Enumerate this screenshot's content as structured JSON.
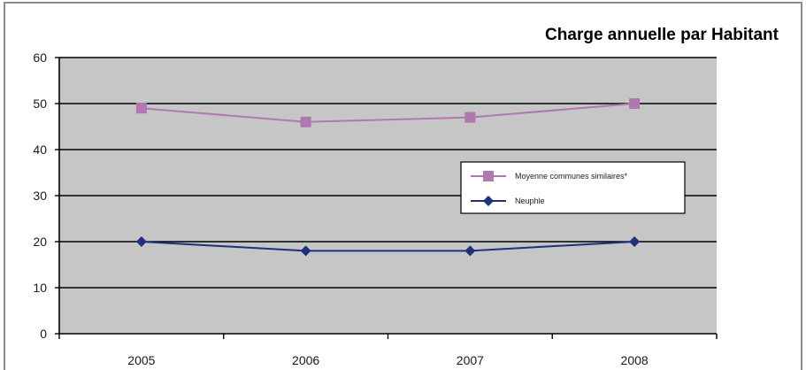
{
  "chart_data": {
    "type": "line",
    "title": "Charge annuelle par Habitant",
    "xlabel": "",
    "ylabel": "",
    "categories": [
      "2005",
      "2006",
      "2007",
      "2008"
    ],
    "ylim": [
      0,
      60
    ],
    "yticks": [
      0,
      10,
      20,
      30,
      40,
      50,
      60
    ],
    "grid": true,
    "legend_position": "right",
    "series": [
      {
        "name": "Moyenne communes similaires*",
        "values": [
          49,
          46,
          47,
          50
        ],
        "color": "#b078b0",
        "marker": "square"
      },
      {
        "name": "Neuphle",
        "values": [
          20,
          18,
          18,
          20
        ],
        "color": "#20307a",
        "marker": "diamond"
      }
    ]
  }
}
